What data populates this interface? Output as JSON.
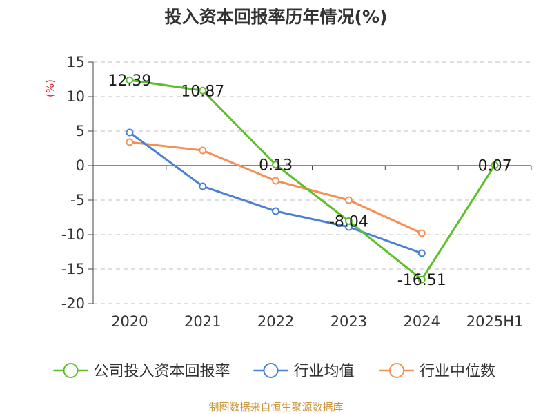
{
  "chart_data": {
    "type": "line",
    "title": "投入资本回报率历年情况(%)",
    "unit_label": "(%)",
    "categories": [
      "2020",
      "2021",
      "2022",
      "2023",
      "2024",
      "2025H1"
    ],
    "ylim": [
      -20,
      15
    ],
    "yticks": [
      15,
      10,
      5,
      0,
      -5,
      -10,
      -15,
      -20
    ],
    "grid": true,
    "legend_position": "bottom",
    "series": [
      {
        "name": "公司投入资本回报率",
        "color": "#5cbf2a",
        "values": [
          12.39,
          10.87,
          0.13,
          -8.04,
          -16.51,
          0.07
        ],
        "labels": [
          "12.39",
          "10.87",
          "0.13",
          "-8.04",
          "-16.51",
          "0.07"
        ]
      },
      {
        "name": "行业均值",
        "color": "#4a7fd8",
        "values": [
          4.8,
          -3.0,
          -6.6,
          -8.9,
          -12.7,
          null
        ]
      },
      {
        "name": "行业中位数",
        "color": "#f59055",
        "values": [
          3.4,
          2.2,
          -2.2,
          -5.0,
          -9.8,
          null
        ]
      }
    ]
  },
  "source": "制图数据来自恒生聚源数据库"
}
